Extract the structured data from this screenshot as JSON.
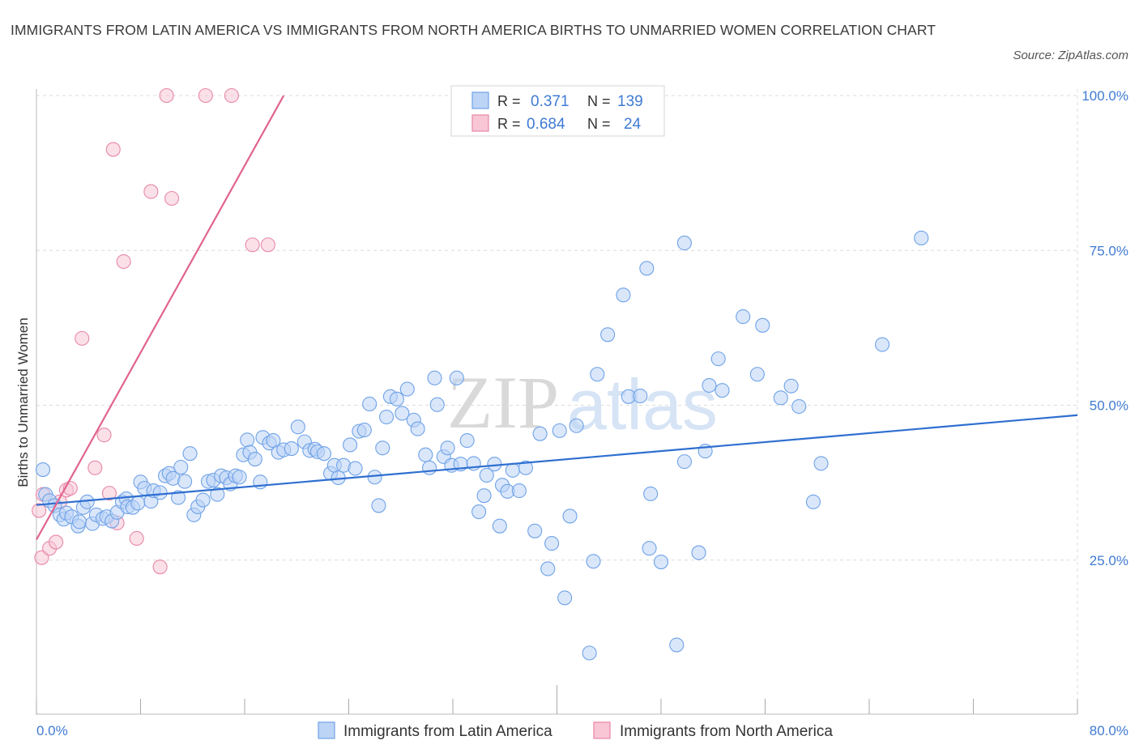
{
  "title": "IMMIGRANTS FROM LATIN AMERICA VS IMMIGRANTS FROM NORTH AMERICA BIRTHS TO UNMARRIED WOMEN CORRELATION CHART",
  "source": "Source: ZipAtlas.com",
  "watermark": {
    "zip": "ZIP",
    "atlas": "atlas"
  },
  "chart_data": {
    "type": "scatter",
    "ylabel": "Births to Unmarried Women",
    "xlim": [
      0,
      80
    ],
    "ylim": [
      0,
      100
    ],
    "x_tick_labels": [
      "0.0%",
      "80.0%"
    ],
    "y_ticks": [
      25,
      50,
      75,
      100
    ],
    "y_tick_labels": [
      "25.0%",
      "50.0%",
      "75.0%",
      "100.0%"
    ],
    "grid": true,
    "legend": {
      "placement": "top-center",
      "rows": [
        {
          "r_label": "R =",
          "r": "0.371",
          "n_label": "N =",
          "n": "139"
        },
        {
          "r_label": "R =",
          "r": "0.684",
          "n_label": "N =",
          "n": "24"
        }
      ]
    },
    "series": [
      {
        "name": "Immigrants from Latin America",
        "color": "#6fa2e8",
        "fill": "#bcd4f5",
        "trend": {
          "x": [
            0,
            80
          ],
          "y": [
            33.9,
            48.4
          ]
        },
        "points": [
          [
            0.5,
            39.6
          ],
          [
            0.7,
            35.6
          ],
          [
            1.0,
            34.6
          ],
          [
            1.4,
            33.8
          ],
          [
            1.8,
            32.3
          ],
          [
            2.1,
            31.6
          ],
          [
            2.3,
            32.6
          ],
          [
            2.7,
            32.0
          ],
          [
            3.2,
            30.5
          ],
          [
            3.3,
            31.2
          ],
          [
            3.6,
            33.5
          ],
          [
            3.9,
            34.4
          ],
          [
            4.3,
            30.9
          ],
          [
            4.6,
            32.3
          ],
          [
            5.1,
            31.7
          ],
          [
            5.4,
            32.0
          ],
          [
            5.8,
            31.3
          ],
          [
            6.2,
            32.7
          ],
          [
            6.6,
            34.4
          ],
          [
            6.9,
            34.9
          ],
          [
            7.0,
            33.6
          ],
          [
            7.4,
            33.5
          ],
          [
            7.8,
            34.2
          ],
          [
            8.0,
            37.6
          ],
          [
            8.3,
            36.6
          ],
          [
            8.8,
            34.5
          ],
          [
            9.0,
            36.2
          ],
          [
            9.5,
            35.9
          ],
          [
            9.9,
            38.6
          ],
          [
            10.2,
            39.0
          ],
          [
            10.5,
            38.2
          ],
          [
            10.9,
            35.1
          ],
          [
            11.1,
            40.0
          ],
          [
            11.4,
            37.7
          ],
          [
            11.8,
            42.2
          ],
          [
            12.1,
            32.3
          ],
          [
            12.4,
            33.6
          ],
          [
            12.8,
            34.7
          ],
          [
            13.2,
            37.7
          ],
          [
            13.6,
            37.9
          ],
          [
            13.9,
            35.6
          ],
          [
            14.2,
            38.6
          ],
          [
            14.6,
            38.3
          ],
          [
            14.9,
            37.3
          ],
          [
            15.3,
            38.6
          ],
          [
            15.6,
            38.4
          ],
          [
            15.9,
            42.0
          ],
          [
            16.2,
            44.4
          ],
          [
            16.4,
            42.4
          ],
          [
            16.8,
            41.3
          ],
          [
            17.2,
            37.6
          ],
          [
            17.4,
            44.8
          ],
          [
            17.9,
            43.9
          ],
          [
            18.2,
            44.3
          ],
          [
            18.6,
            42.4
          ],
          [
            19.0,
            42.8
          ],
          [
            19.6,
            43.0
          ],
          [
            20.1,
            46.5
          ],
          [
            20.6,
            44.1
          ],
          [
            21.0,
            42.7
          ],
          [
            21.4,
            42.9
          ],
          [
            21.6,
            42.5
          ],
          [
            22.1,
            42.2
          ],
          [
            22.6,
            39.0
          ],
          [
            22.9,
            40.3
          ],
          [
            23.2,
            38.3
          ],
          [
            23.6,
            40.3
          ],
          [
            24.1,
            43.6
          ],
          [
            24.5,
            39.8
          ],
          [
            24.8,
            45.8
          ],
          [
            25.2,
            46.0
          ],
          [
            25.6,
            50.2
          ],
          [
            26.0,
            38.4
          ],
          [
            26.3,
            33.8
          ],
          [
            26.6,
            43.1
          ],
          [
            26.9,
            48.1
          ],
          [
            27.2,
            51.4
          ],
          [
            27.7,
            51.0
          ],
          [
            28.1,
            48.7
          ],
          [
            28.5,
            52.6
          ],
          [
            29.0,
            47.6
          ],
          [
            29.3,
            46.2
          ],
          [
            29.9,
            42.0
          ],
          [
            30.2,
            39.9
          ],
          [
            30.6,
            54.4
          ],
          [
            30.8,
            50.1
          ],
          [
            31.3,
            41.7
          ],
          [
            31.6,
            43.1
          ],
          [
            31.9,
            40.3
          ],
          [
            32.3,
            54.4
          ],
          [
            32.6,
            40.5
          ],
          [
            33.1,
            44.3
          ],
          [
            33.6,
            40.6
          ],
          [
            34.0,
            32.8
          ],
          [
            34.4,
            35.4
          ],
          [
            34.6,
            38.7
          ],
          [
            35.2,
            40.5
          ],
          [
            35.6,
            30.5
          ],
          [
            35.8,
            37.1
          ],
          [
            36.2,
            36.1
          ],
          [
            36.6,
            39.5
          ],
          [
            37.1,
            36.2
          ],
          [
            37.6,
            39.9
          ],
          [
            38.3,
            29.7
          ],
          [
            38.7,
            45.4
          ],
          [
            39.3,
            23.6
          ],
          [
            39.6,
            27.7
          ],
          [
            40.2,
            45.9
          ],
          [
            40.6,
            18.9
          ],
          [
            41.0,
            32.1
          ],
          [
            41.5,
            46.7
          ],
          [
            42.5,
            10.0
          ],
          [
            42.8,
            24.8
          ],
          [
            43.1,
            55.0
          ],
          [
            43.9,
            61.4
          ],
          [
            45.1,
            67.8
          ],
          [
            45.5,
            51.4
          ],
          [
            46.4,
            51.5
          ],
          [
            46.9,
            72.1
          ],
          [
            47.2,
            35.7
          ],
          [
            47.1,
            26.9
          ],
          [
            48.0,
            24.7
          ],
          [
            49.2,
            11.3
          ],
          [
            49.8,
            40.9
          ],
          [
            49.8,
            76.2
          ],
          [
            50.9,
            26.2
          ],
          [
            51.4,
            42.6
          ],
          [
            51.7,
            53.2
          ],
          [
            52.4,
            57.5
          ],
          [
            52.7,
            52.4
          ],
          [
            54.3,
            64.3
          ],
          [
            55.4,
            55.0
          ],
          [
            55.8,
            62.9
          ],
          [
            57.2,
            51.2
          ],
          [
            58.0,
            53.1
          ],
          [
            58.6,
            49.8
          ],
          [
            59.7,
            34.4
          ],
          [
            60.3,
            40.6
          ],
          [
            65.0,
            59.8
          ],
          [
            68.0,
            77.0
          ]
        ]
      },
      {
        "name": "Immigrants from North America",
        "color": "#e887a8",
        "fill": "#f8c6d5",
        "trend": {
          "x": [
            0,
            19
          ],
          "y": [
            28.3,
            100
          ]
        },
        "points": [
          [
            0.2,
            33.0
          ],
          [
            0.4,
            25.4
          ],
          [
            0.5,
            35.6
          ],
          [
            1.0,
            26.9
          ],
          [
            1.5,
            27.9
          ],
          [
            1.8,
            34.4
          ],
          [
            2.3,
            36.3
          ],
          [
            2.6,
            36.6
          ],
          [
            3.5,
            60.8
          ],
          [
            4.5,
            39.9
          ],
          [
            5.2,
            45.2
          ],
          [
            5.6,
            35.8
          ],
          [
            5.9,
            91.3
          ],
          [
            6.2,
            31.0
          ],
          [
            6.7,
            73.2
          ],
          [
            7.7,
            28.5
          ],
          [
            8.8,
            84.5
          ],
          [
            9.5,
            23.9
          ],
          [
            10.0,
            100
          ],
          [
            10.4,
            83.4
          ],
          [
            13.0,
            100
          ],
          [
            15.0,
            100
          ],
          [
            16.6,
            75.9
          ],
          [
            17.8,
            75.9
          ]
        ]
      }
    ]
  }
}
